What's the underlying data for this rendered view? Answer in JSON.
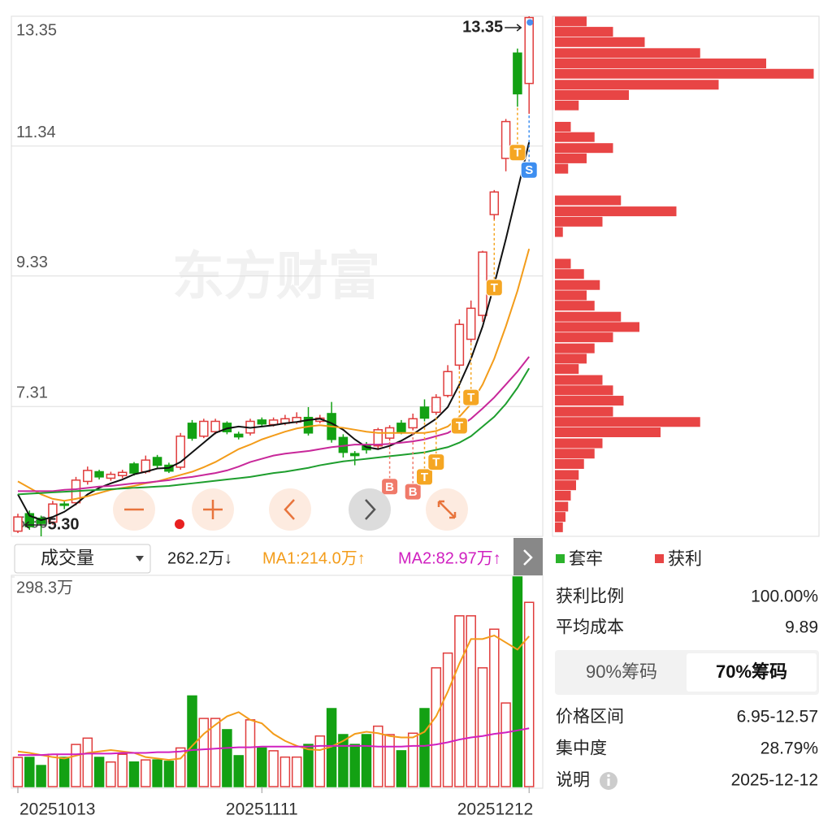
{
  "watermark": "东方财富",
  "chart_data": [
    {
      "type": "candlestick",
      "up_color": "#e03c3c",
      "down_color": "#13a113",
      "open": [
        5.38,
        5.65,
        5.58,
        5.52,
        5.8,
        5.82,
        6.15,
        6.3,
        6.2,
        6.24,
        6.42,
        6.3,
        6.52,
        6.4,
        6.37,
        7.05,
        6.85,
        6.92,
        7.05,
        6.88,
        6.9,
        7.1,
        7.03,
        7.05,
        7.07,
        7.14,
        7.08,
        7.2,
        6.83,
        6.58,
        6.72,
        6.7,
        6.82,
        7.05,
        6.98,
        7.3,
        7.22,
        7.48,
        7.95,
        8.35,
        8.72,
        10.28,
        11.15,
        12.78,
        12.31
      ],
      "close": [
        5.6,
        5.45,
        5.5,
        5.8,
        5.78,
        6.17,
        6.32,
        6.22,
        6.26,
        6.29,
        6.28,
        6.48,
        6.4,
        6.31,
        6.85,
        6.82,
        7.08,
        7.08,
        6.92,
        6.84,
        7.08,
        7.04,
        7.1,
        7.12,
        7.14,
        6.9,
        7.13,
        6.8,
        6.6,
        6.55,
        6.64,
        6.95,
        6.98,
        6.92,
        7.12,
        7.13,
        7.45,
        7.85,
        8.58,
        8.83,
        9.7,
        10.63,
        11.72,
        12.15,
        13.33
      ],
      "high": [
        5.65,
        5.7,
        5.62,
        5.85,
        5.86,
        6.22,
        6.38,
        6.33,
        6.3,
        6.33,
        6.45,
        6.55,
        6.56,
        6.44,
        6.9,
        7.1,
        7.12,
        7.12,
        7.08,
        6.92,
        7.12,
        7.14,
        7.14,
        7.18,
        7.22,
        7.3,
        7.18,
        7.38,
        6.88,
        6.62,
        6.76,
        6.98,
        7.02,
        7.1,
        7.2,
        7.42,
        7.5,
        7.95,
        8.66,
        8.95,
        9.72,
        10.66,
        11.76,
        12.85,
        13.35
      ],
      "low": [
        5.35,
        5.4,
        5.3,
        5.48,
        5.72,
        5.78,
        6.1,
        6.18,
        6.16,
        6.2,
        6.24,
        6.27,
        6.36,
        6.28,
        6.33,
        6.78,
        6.82,
        6.88,
        6.88,
        6.8,
        6.86,
        7.0,
        7.0,
        7.02,
        7.04,
        6.86,
        7.05,
        6.75,
        6.52,
        6.4,
        6.58,
        6.66,
        6.78,
        6.88,
        6.94,
        7.08,
        7.18,
        7.45,
        7.88,
        8.3,
        8.62,
        10.2,
        10.95,
        11.95,
        11.84
      ],
      "ylim": [
        5.3,
        13.35
      ],
      "yticks": [
        {
          "value": 5.3,
          "label": "5.30"
        },
        7.31,
        9.33,
        11.34,
        13.35
      ],
      "grid": true,
      "lines": [
        {
          "color": "#111111",
          "values": [
            5.95,
            5.62,
            5.55,
            5.6,
            5.68,
            5.8,
            5.95,
            6.05,
            6.12,
            6.18,
            6.26,
            6.3,
            6.35,
            6.36,
            6.45,
            6.6,
            6.75,
            6.9,
            6.97,
            7.0,
            6.98,
            7.0,
            7.02,
            7.05,
            7.07,
            7.1,
            7.12,
            7.05,
            6.95,
            6.8,
            6.68,
            6.65,
            6.7,
            6.78,
            6.88,
            7.0,
            7.12,
            7.3,
            7.65,
            8.05,
            8.55,
            9.2,
            9.9,
            10.65,
            11.4
          ]
        },
        {
          "color": "#f39c1a",
          "values": [
            6.15,
            6.05,
            5.95,
            5.88,
            5.85,
            5.88,
            5.92,
            5.97,
            6.02,
            6.05,
            6.08,
            6.12,
            6.15,
            6.2,
            6.25,
            6.3,
            6.37,
            6.45,
            6.55,
            6.65,
            6.72,
            6.8,
            6.86,
            6.92,
            6.97,
            7.0,
            7.02,
            7.0,
            6.98,
            6.95,
            6.92,
            6.9,
            6.9,
            6.9,
            6.9,
            6.9,
            6.93,
            7.0,
            7.15,
            7.35,
            7.65,
            8.05,
            8.55,
            9.1,
            9.75
          ]
        },
        {
          "color": "#c8289a",
          "values": [
            6.0,
            6.0,
            6.0,
            6.0,
            6.02,
            6.03,
            6.05,
            6.07,
            6.08,
            6.1,
            6.12,
            6.13,
            6.15,
            6.17,
            6.2,
            6.22,
            6.25,
            6.28,
            6.32,
            6.38,
            6.45,
            6.5,
            6.55,
            6.58,
            6.6,
            6.62,
            6.65,
            6.68,
            6.7,
            6.72,
            6.72,
            6.72,
            6.73,
            6.75,
            6.77,
            6.8,
            6.85,
            6.9,
            7.0,
            7.12,
            7.28,
            7.45,
            7.65,
            7.85,
            8.08
          ]
        },
        {
          "color": "#1e9e2e",
          "values": [
            5.95,
            5.96,
            5.97,
            5.98,
            5.99,
            6.0,
            6.01,
            6.02,
            6.03,
            6.04,
            6.05,
            6.06,
            6.07,
            6.08,
            6.1,
            6.12,
            6.14,
            6.16,
            6.18,
            6.2,
            6.22,
            6.25,
            6.28,
            6.3,
            6.33,
            6.36,
            6.4,
            6.43,
            6.46,
            6.48,
            6.5,
            6.52,
            6.54,
            6.56,
            6.58,
            6.6,
            6.64,
            6.68,
            6.75,
            6.85,
            7.0,
            7.15,
            7.35,
            7.6,
            7.9
          ]
        }
      ],
      "markers": [
        {
          "label": "B",
          "index": 32,
          "value": 6.07,
          "color": "#f07a6a"
        },
        {
          "label": "B",
          "index": 34,
          "value": 5.99,
          "color": "#f07a6a"
        },
        {
          "label": "T",
          "index": 35,
          "value": 6.22,
          "color": "#f5a623"
        },
        {
          "label": "T",
          "index": 36,
          "value": 6.45,
          "color": "#f5a623"
        },
        {
          "label": "T",
          "index": 38,
          "value": 7.01,
          "color": "#f5a623"
        },
        {
          "label": "T",
          "index": 39,
          "value": 7.45,
          "color": "#f5a623"
        },
        {
          "label": "T",
          "index": 41,
          "value": 9.15,
          "color": "#f5a623"
        },
        {
          "label": "T",
          "index": 43,
          "value": 11.24,
          "color": "#f5a623"
        },
        {
          "label": "S",
          "index": 44,
          "value": 10.97,
          "color": "#3d8ef0"
        }
      ],
      "max_label": "13.35",
      "min_label": "5.30"
    },
    {
      "type": "bar",
      "selector": "成交量",
      "current_label": "262.2万↓",
      "categories": [
        "20251013",
        null,
        null,
        null,
        null,
        null,
        null,
        null,
        null,
        null,
        null,
        null,
        null,
        null,
        null,
        null,
        null,
        null,
        null,
        null,
        null,
        "20251111",
        null,
        null,
        null,
        null,
        null,
        null,
        null,
        null,
        null,
        null,
        null,
        null,
        null,
        null,
        null,
        null,
        null,
        null,
        null,
        null,
        null,
        null,
        "20251212"
      ],
      "values": [
        41.6,
        41.6,
        30,
        46,
        41.6,
        60,
        69,
        41.6,
        35,
        46,
        35,
        38,
        38,
        36,
        55,
        129,
        97,
        97,
        81,
        44,
        95,
        55,
        51,
        42,
        42,
        60,
        72,
        111,
        74,
        60,
        74,
        86,
        74,
        51,
        76,
        111,
        169,
        190,
        243,
        243,
        169,
        224,
        119,
        298.3,
        262.2
      ],
      "ylim": [
        0,
        298.3
      ],
      "yticks": [
        {
          "value": 298.3,
          "label": "298.3万"
        }
      ],
      "series": [
        {
          "name": "MA1:214.0万↑",
          "color": "#f39c1a",
          "values": [
            50,
            48,
            45,
            42,
            40,
            44,
            48,
            50,
            52,
            50,
            48,
            42,
            40,
            38,
            40,
            58,
            75,
            88,
            100,
            106,
            95,
            90,
            75,
            65,
            58,
            53,
            52,
            57,
            65,
            75,
            78,
            76,
            72,
            70,
            70,
            78,
            100,
            135,
            175,
            210,
            210,
            215,
            205,
            195,
            214.0
          ]
        },
        {
          "name": "MA2:82.97万↑",
          "color": "#d020c0",
          "values": [
            45,
            45,
            45,
            46,
            46,
            46,
            47,
            47,
            47,
            48,
            48,
            48,
            49,
            49,
            50,
            52,
            53,
            54,
            55,
            56,
            56,
            57,
            57,
            57,
            57,
            57,
            58,
            58,
            58,
            58,
            58,
            57,
            57,
            57,
            58,
            58,
            60,
            63,
            67,
            70,
            72,
            75,
            77,
            80,
            82.97
          ]
        }
      ]
    },
    {
      "type": "chip",
      "color": "#e84545",
      "xlim": [
        0,
        100
      ],
      "price_levels": [
        13.27,
        13.11,
        12.95,
        12.78,
        12.62,
        12.46,
        12.29,
        12.13,
        11.97,
        11.8,
        11.64,
        11.48,
        11.31,
        11.15,
        10.99,
        10.82,
        10.66,
        10.5,
        10.33,
        10.17,
        10.01,
        9.85,
        9.68,
        9.52,
        9.36,
        9.19,
        9.03,
        8.87,
        8.7,
        8.54,
        8.38,
        8.21,
        8.05,
        7.89,
        7.72,
        7.56,
        7.4,
        7.23,
        7.07,
        6.91,
        6.74,
        6.58,
        6.42,
        6.25,
        6.09,
        5.93,
        5.76,
        5.6,
        5.44
      ],
      "values": [
        12,
        22,
        34,
        55,
        80,
        98,
        62,
        28,
        9,
        0,
        6,
        15,
        22,
        12,
        5,
        0,
        0,
        25,
        46,
        18,
        3,
        0,
        0,
        6,
        11,
        17,
        12,
        15,
        25,
        32,
        22,
        15,
        12,
        9,
        18,
        22,
        26,
        22,
        55,
        40,
        18,
        15,
        11,
        9,
        8,
        6,
        5,
        4,
        3
      ],
      "legend": [
        {
          "name": "套牢",
          "color": "#2bb22b"
        },
        {
          "name": "获利",
          "color": "#e84545"
        }
      ]
    }
  ],
  "panel": {
    "stats": [
      [
        "获利比例",
        "100.00%"
      ],
      [
        "平均成本",
        "9.89"
      ]
    ],
    "tabs": [
      "90%筹码",
      "70%筹码"
    ],
    "active_tab": 1,
    "details": [
      [
        "价格区间",
        "6.95-12.57"
      ],
      [
        "集中度",
        "28.79%"
      ],
      [
        "说明",
        "2025-12-12"
      ]
    ]
  }
}
